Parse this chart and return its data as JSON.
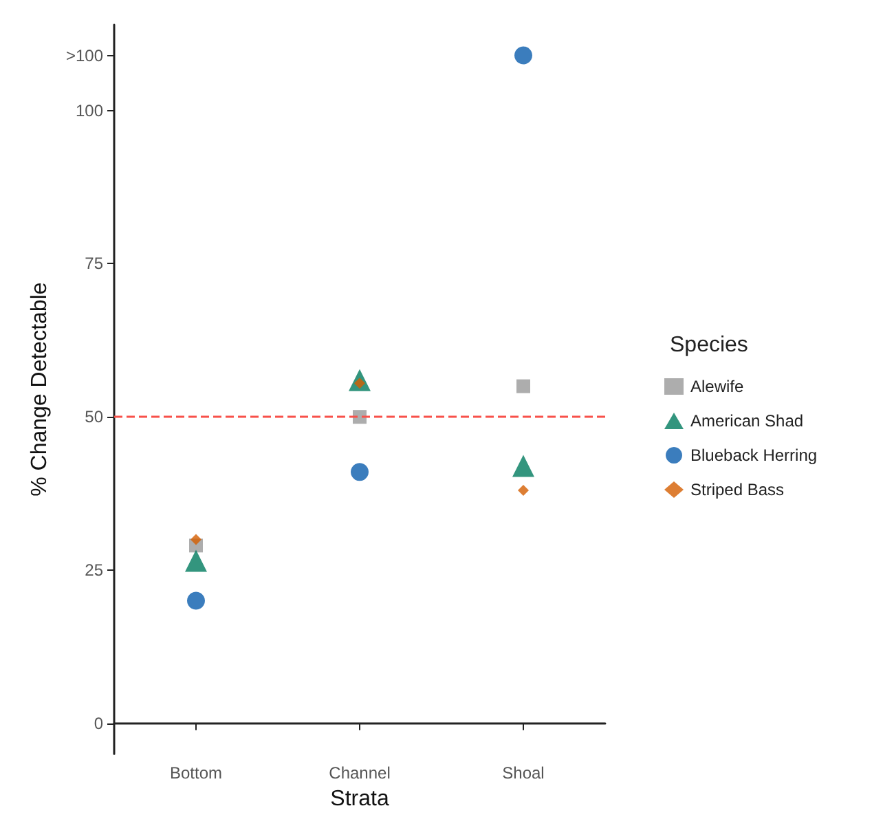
{
  "chart_data": {
    "type": "scatter",
    "xlabel": "Strata",
    "ylabel": "% Change Detectable",
    "legend_title": "Species",
    "legend": "right",
    "grid": false,
    "categories": [
      "Bottom",
      "Channel",
      "Shoal"
    ],
    "ylim": [
      -5,
      114
    ],
    "yticks": [
      0,
      25,
      50,
      75,
      100,
      {
        "value": 109,
        "label": ">100"
      }
    ],
    "series": [
      {
        "name": "Alewife",
        "color": "#999999",
        "marker": "square",
        "values": [
          29,
          50,
          55
        ]
      },
      {
        "name": "American Shad",
        "color": "#007a5e",
        "marker": "triangle",
        "values": [
          26.5,
          56,
          42
        ]
      },
      {
        "name": "Blueback Herring",
        "color": "#0a5cad",
        "marker": "circle",
        "values": [
          20,
          41,
          109
        ]
      },
      {
        "name": "Striped Bass",
        "color": "#d55e00",
        "marker": "diamond",
        "values": [
          30,
          55.5,
          38
        ]
      }
    ],
    "ref_lines": [
      {
        "axis": "y",
        "value": 50,
        "color": "#f8514a",
        "line_style": "dashed"
      }
    ]
  }
}
